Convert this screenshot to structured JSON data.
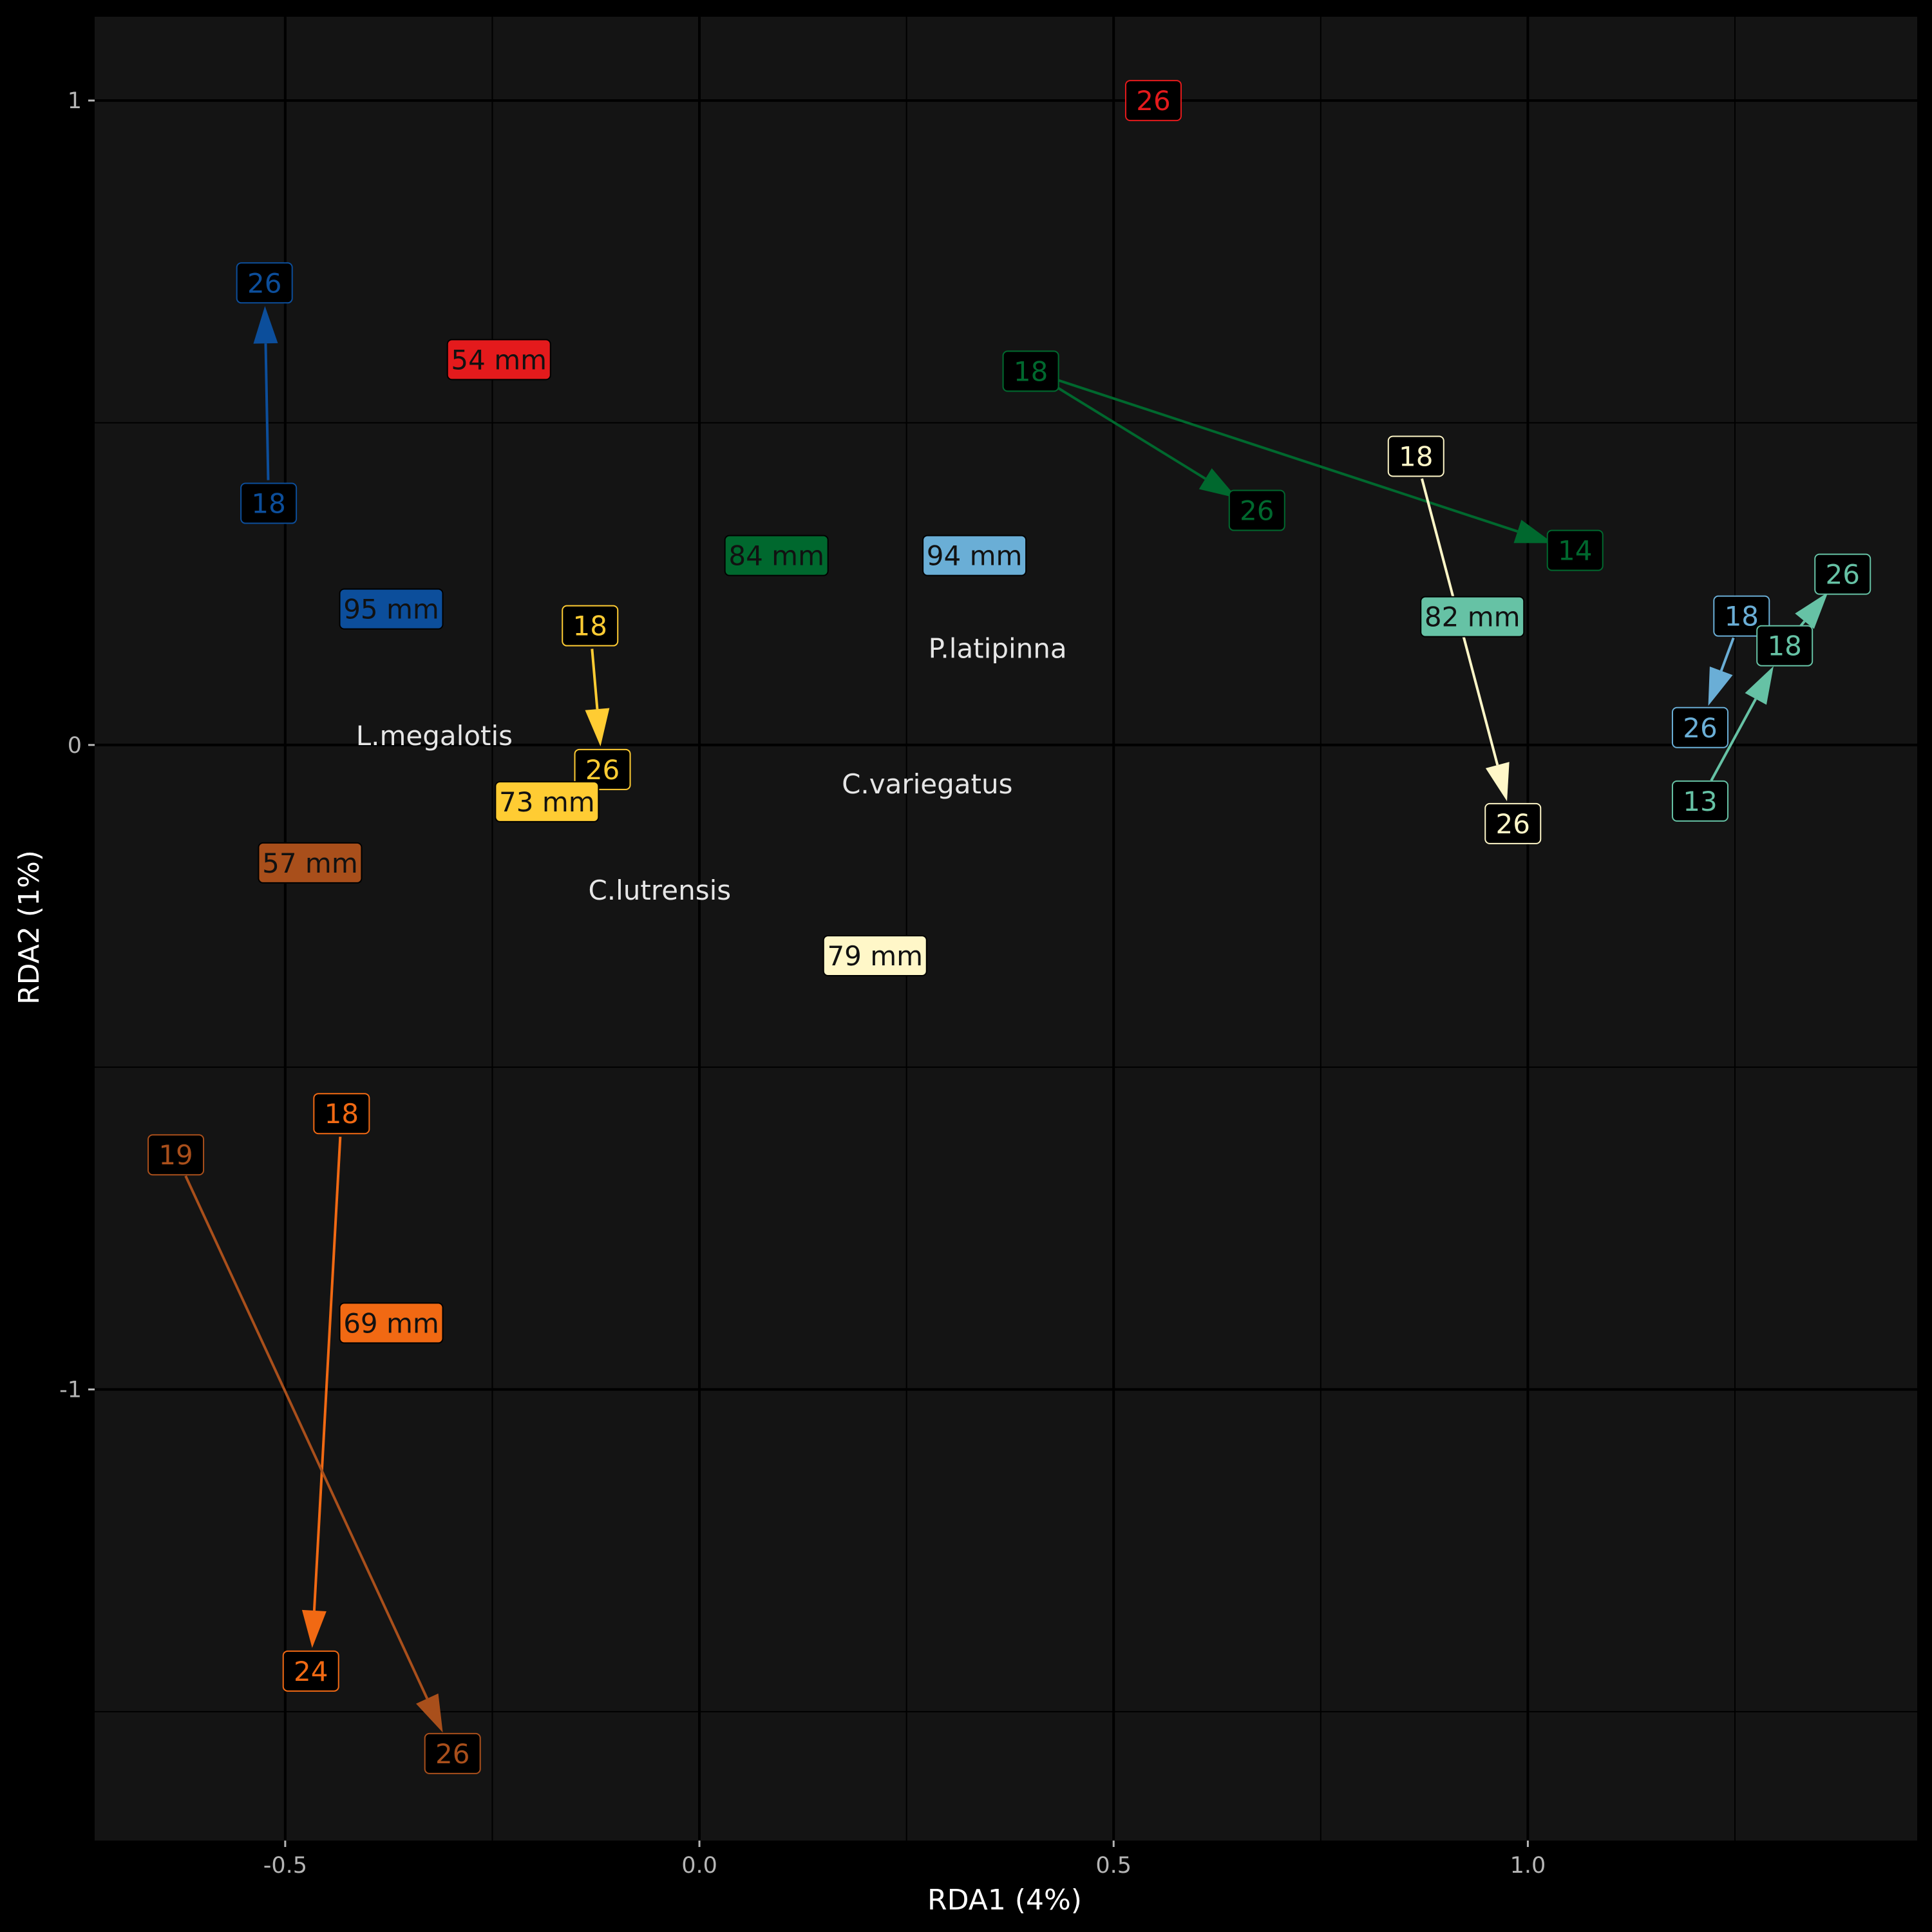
{
  "chart_data": {
    "type": "scatter",
    "xlabel": "RDA1 (4%)",
    "ylabel": "RDA2 (1%)",
    "xlim": [
      -0.73,
      1.47
    ],
    "ylim": [
      -1.7,
      1.13
    ],
    "x_ticks": [
      -0.5,
      0.0,
      0.5,
      1.0
    ],
    "x_tick_labels": [
      "-0.5",
      "0.0",
      "0.5",
      "1.0"
    ],
    "y_ticks": [
      1,
      0,
      -1
    ],
    "y_tick_labels": [
      "1",
      "0",
      "-1"
    ],
    "grid": true,
    "species": [
      {
        "name": "L.megalotis",
        "x": -0.32,
        "y": 0.015
      },
      {
        "name": "P.latipinna",
        "x": 0.36,
        "y": 0.15
      },
      {
        "name": "C.variegatus",
        "x": 0.275,
        "y": -0.06
      },
      {
        "name": "C.lutrensis",
        "x": -0.048,
        "y": -0.225
      }
    ],
    "size_labels": [
      {
        "text": "54 mm",
        "x": -0.242,
        "y": 0.598,
        "color": "#e41a1c"
      },
      {
        "text": "84 mm",
        "x": 0.093,
        "y": 0.294,
        "color": "#00682e"
      },
      {
        "text": "94 mm",
        "x": 0.332,
        "y": 0.294,
        "color": "#6aaed6"
      },
      {
        "text": "95 mm",
        "x": -0.372,
        "y": 0.211,
        "color": "#0c4e9b"
      },
      {
        "text": "82 mm",
        "x": 0.933,
        "y": 0.199,
        "color": "#66c2a5"
      },
      {
        "text": "73 mm",
        "x": -0.184,
        "y": -0.088,
        "color": "#ffcc33"
      },
      {
        "text": "57 mm",
        "x": -0.47,
        "y": -0.183,
        "color": "#a94f1b"
      },
      {
        "text": "79 mm",
        "x": 0.212,
        "y": -0.327,
        "color": "#fff7c8"
      },
      {
        "text": "69 mm",
        "x": -0.372,
        "y": -0.897,
        "color": "#f16913"
      }
    ],
    "trajectories": [
      {
        "color": "#e41a1c",
        "points": [
          {
            "label": "26",
            "x": 0.548,
            "y": 1.0
          }
        ]
      },
      {
        "color": "#0c4e9b",
        "points": [
          {
            "label": "18",
            "x": -0.52,
            "y": 0.375
          },
          {
            "label": "26",
            "x": -0.525,
            "y": 0.717
          }
        ]
      },
      {
        "color": "#00682e",
        "points": [
          {
            "label": "18",
            "x": 0.4,
            "y": 0.58
          },
          {
            "label": "26",
            "x": 0.673,
            "y": 0.364
          }
        ]
      },
      {
        "color": "#00682e",
        "points": [
          {
            "label": "18",
            "x": 0.4,
            "y": 0.58
          },
          {
            "label": "14",
            "x": 1.057,
            "y": 0.302
          }
        ]
      },
      {
        "color": "#fff7c8",
        "points": [
          {
            "label": "18",
            "x": 0.865,
            "y": 0.448
          },
          {
            "label": "26",
            "x": 0.982,
            "y": -0.122
          }
        ]
      },
      {
        "color": "#ffcc33",
        "points": [
          {
            "label": "18",
            "x": -0.132,
            "y": 0.185
          },
          {
            "label": "26",
            "x": -0.117,
            "y": -0.038
          }
        ]
      },
      {
        "color": "#6aaed6",
        "points": [
          {
            "label": "18",
            "x": 1.258,
            "y": 0.2
          },
          {
            "label": "26",
            "x": 1.208,
            "y": 0.027
          }
        ]
      },
      {
        "color": "#66c2a5",
        "points": [
          {
            "label": "13",
            "x": 1.208,
            "y": -0.087
          },
          {
            "label": "18",
            "x": 1.31,
            "y": 0.154
          },
          {
            "label": "26",
            "x": 1.38,
            "y": 0.265
          }
        ]
      },
      {
        "color": "#f16913",
        "points": [
          {
            "label": "18",
            "x": -0.432,
            "y": -0.572
          },
          {
            "label": "24",
            "x": -0.469,
            "y": -1.437
          }
        ]
      },
      {
        "color": "#a94f1b",
        "points": [
          {
            "label": "19",
            "x": -0.632,
            "y": -0.636
          },
          {
            "label": "26",
            "x": -0.298,
            "y": -1.565
          }
        ]
      }
    ]
  }
}
